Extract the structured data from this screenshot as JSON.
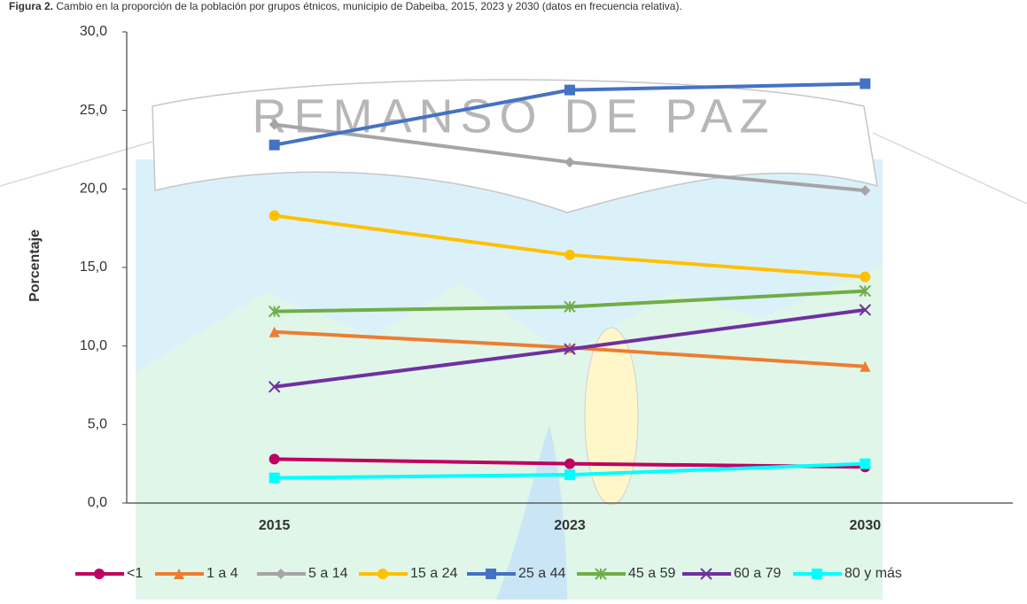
{
  "chart_data": {
    "type": "line",
    "title_label": "Figura 2.",
    "title": "Cambio en la proporción de la población por grupos étnicos, municipio de Dabeiba, 2015, 2023 y 2030 (datos en frecuencia relativa).",
    "watermark": "REMANSO DE PAZ",
    "ylabel": "Porcentaje",
    "categories": [
      "2015",
      "2023",
      "2030"
    ],
    "ylim": [
      0,
      30
    ],
    "yticks": [
      {
        "value": 0,
        "label": "0,0"
      },
      {
        "value": 5,
        "label": "5,0"
      },
      {
        "value": 10,
        "label": "10,0"
      },
      {
        "value": 15,
        "label": "15,0"
      },
      {
        "value": 20,
        "label": "20,0"
      },
      {
        "value": 25,
        "label": "25,0"
      },
      {
        "value": 30,
        "label": "30,0"
      }
    ],
    "legend": "bottom",
    "series": [
      {
        "name": "<1",
        "color": "#c00060",
        "marker": "circle",
        "values": [
          2.8,
          2.5,
          2.3
        ]
      },
      {
        "name": "1 a 4",
        "color": "#ed7d31",
        "marker": "triangle",
        "values": [
          10.9,
          9.9,
          8.7
        ]
      },
      {
        "name": "5 a 14",
        "color": "#a5a5a5",
        "marker": "diamond",
        "values": [
          24.1,
          21.7,
          19.9
        ]
      },
      {
        "name": "15 a 24",
        "color": "#ffc000",
        "marker": "circle",
        "values": [
          18.3,
          15.8,
          14.4
        ]
      },
      {
        "name": "25 a 44",
        "color": "#4472c4",
        "marker": "square",
        "values": [
          22.8,
          26.3,
          26.7
        ]
      },
      {
        "name": "45 a 59",
        "color": "#70ad47",
        "marker": "asterisk",
        "values": [
          12.2,
          12.5,
          13.5
        ]
      },
      {
        "name": "60 a 79",
        "color": "#7030a0",
        "marker": "x",
        "values": [
          7.4,
          9.8,
          12.3
        ]
      },
      {
        "name": "80 y más",
        "color": "#00ffff",
        "marker": "square",
        "values": [
          1.6,
          1.8,
          2.5
        ]
      }
    ]
  }
}
